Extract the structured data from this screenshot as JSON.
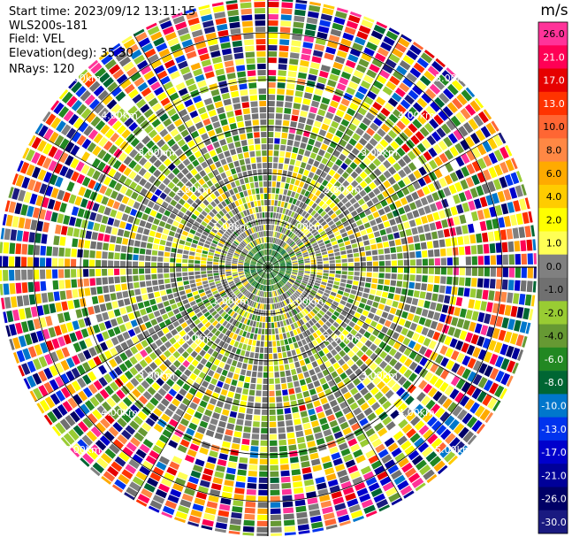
{
  "header": {
    "start_time": "Start time: 2023/09/12 13:11:15",
    "instrument": "WLS200s-181",
    "field": "Field: VEL",
    "elevation": "Elevation(deg): 35.30",
    "nrays": "NRays: 120"
  },
  "chart_data": {
    "type": "heatmap",
    "projection": "polar-ppi",
    "rays": 120,
    "range_rings_km": [
      1,
      2,
      3,
      4,
      5
    ],
    "range_ring_labels": [
      "1.00km",
      "2.00km",
      "3.00km",
      "4.00km",
      "5.00km"
    ],
    "colorbar": {
      "unit": "m/s",
      "tick_labels": [
        "26.0",
        "21.0",
        "17.0",
        "13.0",
        "10.0",
        "8.0",
        "6.0",
        "4.0",
        "2.0",
        "1.0",
        "0.0",
        "-1.0",
        "-2.0",
        "-4.0",
        "-6.0",
        "-8.0",
        "-10.0",
        "-13.0",
        "-17.0",
        "-21.0",
        "-26.0",
        "-30.0"
      ],
      "colors": [
        "#ff3399",
        "#ff0055",
        "#e60000",
        "#ff3300",
        "#ff6633",
        "#ff8844",
        "#ffaa00",
        "#ffcc00",
        "#ffff00",
        "#ffff55",
        "#808080",
        "#707070",
        "#99cc33",
        "#669933",
        "#228822",
        "#006633",
        "#0077cc",
        "#0033ee",
        "#0000cc",
        "#000099",
        "#000066",
        "#1a1a80"
      ]
    }
  }
}
